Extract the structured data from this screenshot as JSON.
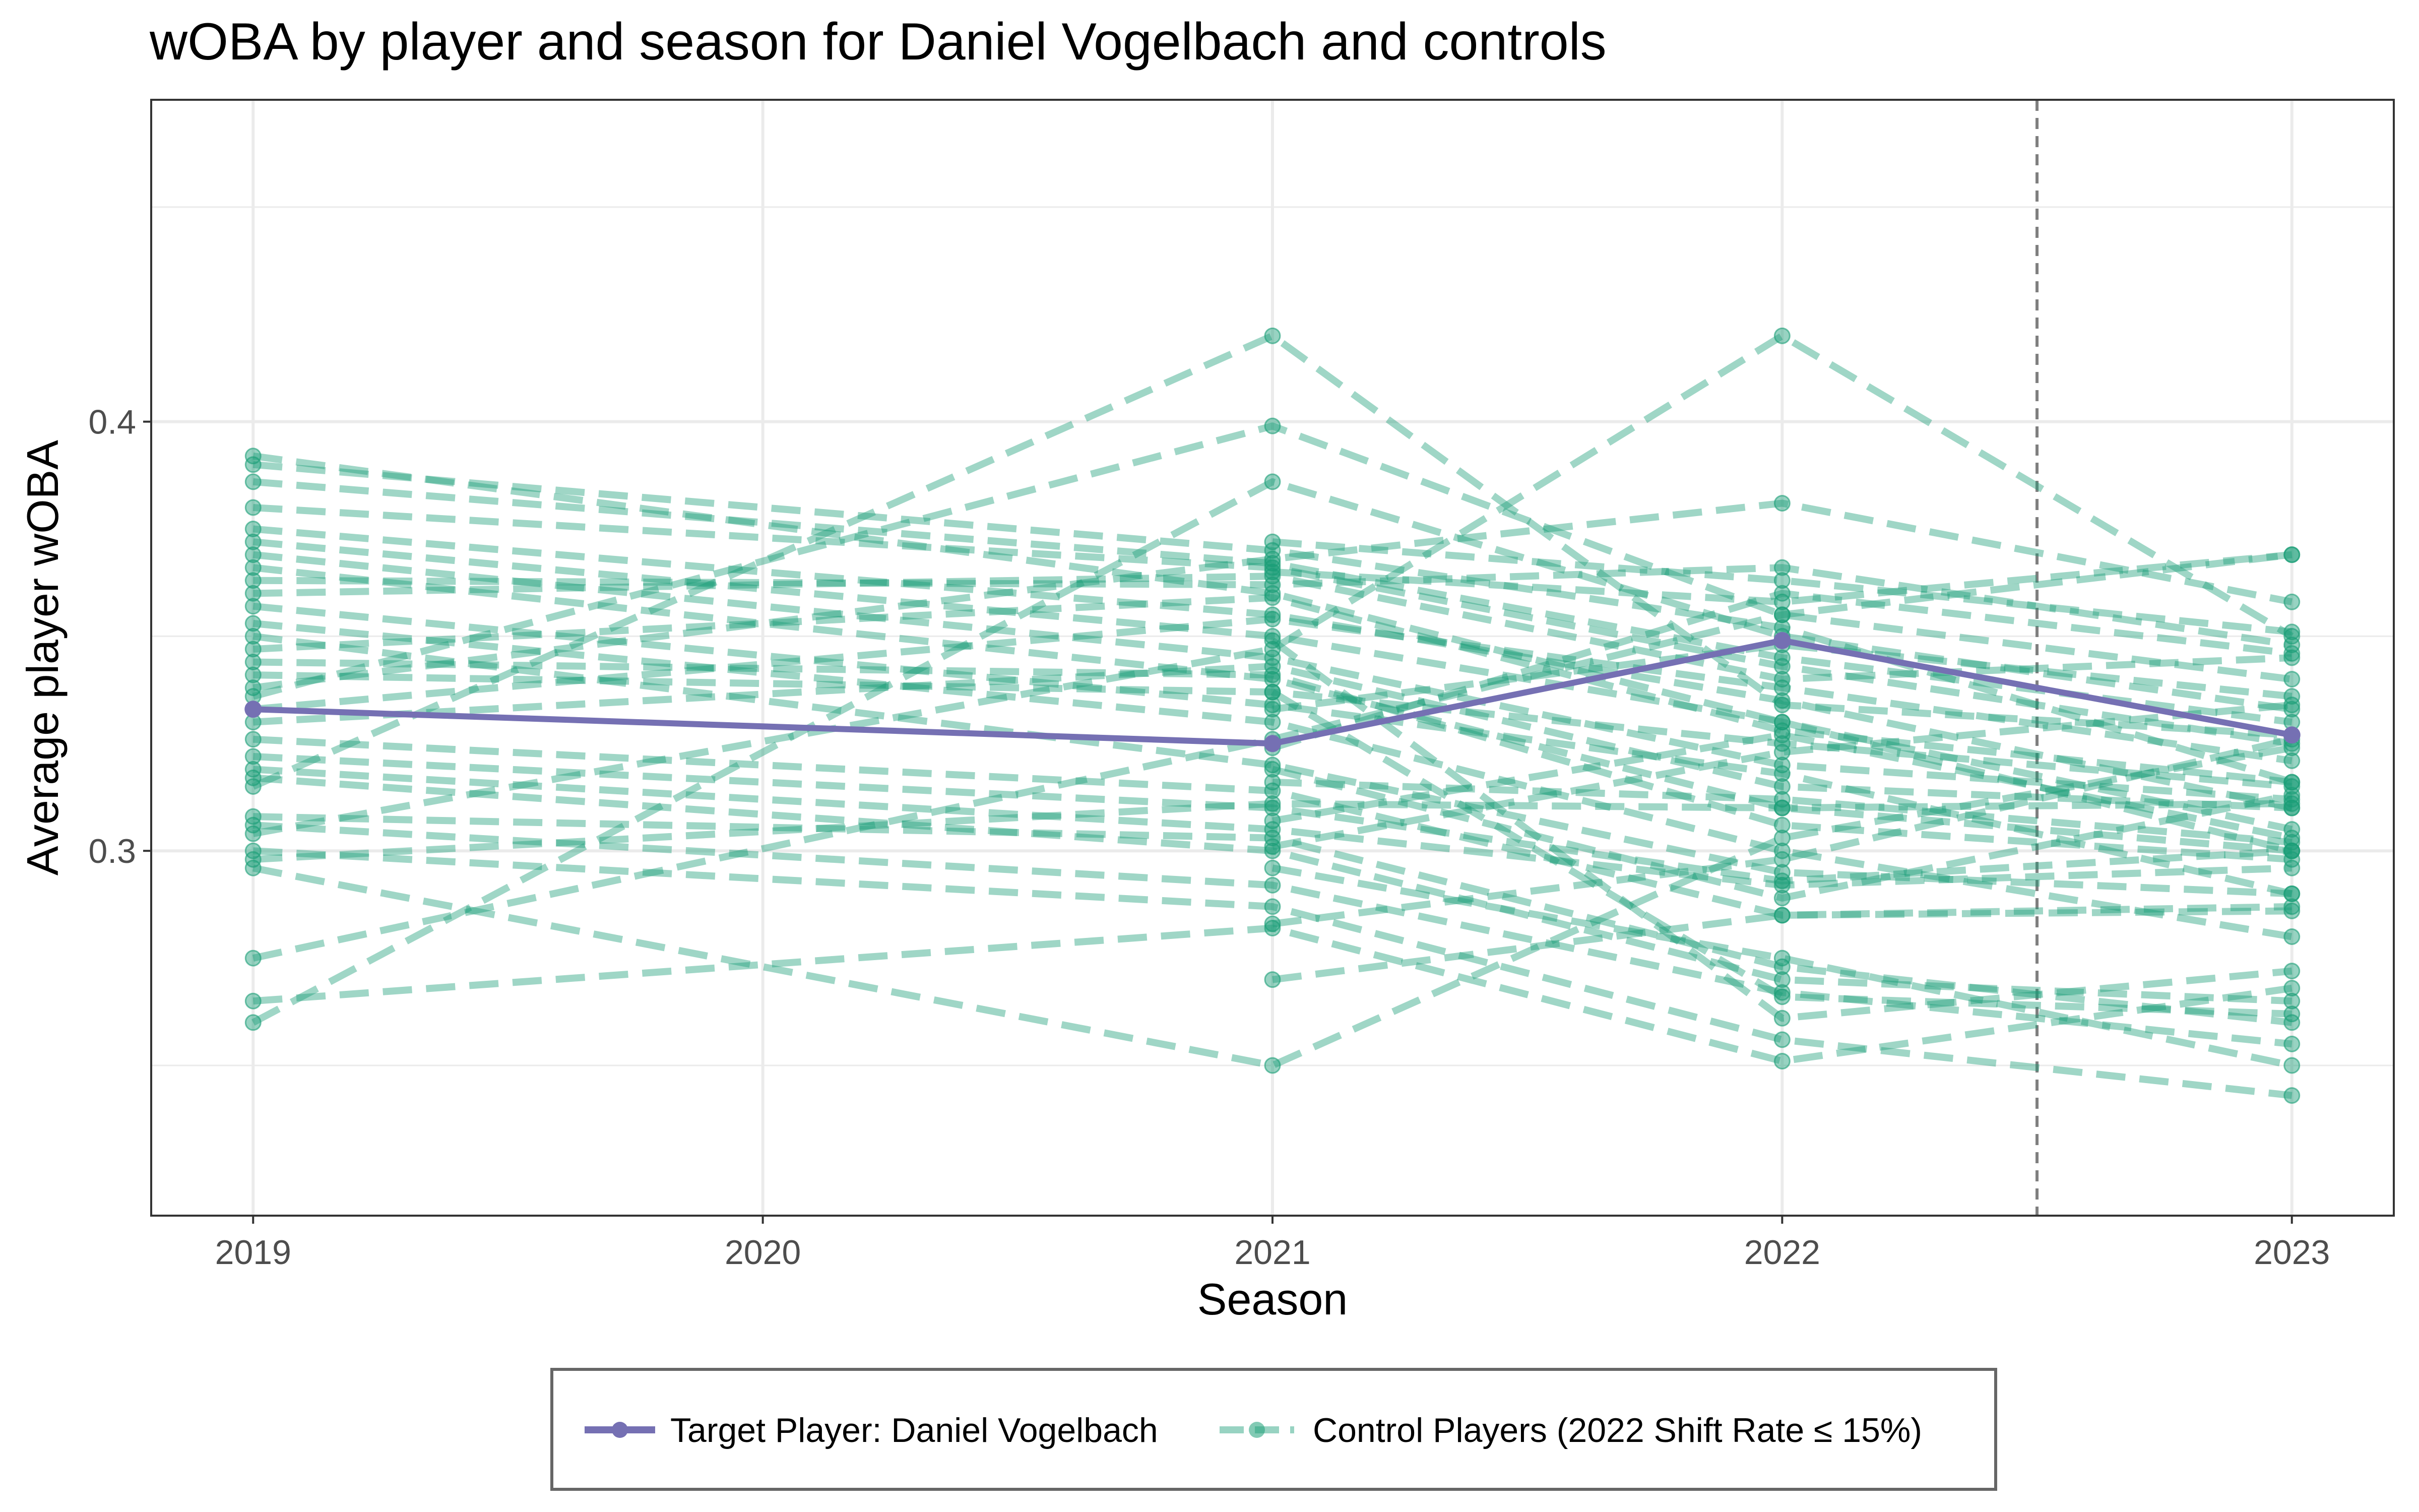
{
  "chart_data": {
    "type": "line",
    "title": "wOBA by player and season for Daniel Vogelbach and controls",
    "xlabel": "Season",
    "ylabel": "Average player wOBA",
    "x": [
      2019,
      2020,
      2021,
      2022,
      2023
    ],
    "x_tick_labels": [
      "2019",
      "2020",
      "2021",
      "2022",
      "2023"
    ],
    "y_ticks": [
      0.3,
      0.4
    ],
    "y_tick_labels": [
      "0.3",
      "0.4"
    ],
    "xlim": [
      2018.8,
      2023.2
    ],
    "ylim": [
      0.215,
      0.475
    ],
    "grid": true,
    "vertical_reference_line": {
      "x": 2022.5,
      "style": "dashed"
    },
    "legend_position": "bottom",
    "series": [
      {
        "name": "Target Player: Daniel Vogelbach",
        "role": "target",
        "color": "#7570B3",
        "style": "solid",
        "points": [
          [
            2019,
            0.333
          ],
          [
            2021,
            0.325
          ],
          [
            2022,
            0.349
          ],
          [
            2023,
            0.327
          ]
        ]
      },
      {
        "name": "Control Players (2022 Shift Rate ≤ 15%)",
        "role": "control",
        "color": "#1B9E77",
        "style": "dashed",
        "players": [
          [
            [
              2019,
              0.392
            ],
            [
              2021,
              0.36
            ],
            [
              2022,
              0.33
            ],
            [
              2023,
              0.3
            ]
          ],
          [
            [
              2019,
              0.39
            ],
            [
              2021,
              0.37
            ],
            [
              2022,
              0.352
            ],
            [
              2023,
              0.316
            ]
          ],
          [
            [
              2019,
              0.386
            ],
            [
              2021,
              0.367
            ],
            [
              2022,
              0.345
            ],
            [
              2023,
              0.33
            ]
          ],
          [
            [
              2019,
              0.38
            ],
            [
              2021,
              0.366
            ],
            [
              2022,
              0.343
            ],
            [
              2023,
              0.325
            ]
          ],
          [
            [
              2019,
              0.375
            ],
            [
              2021,
              0.355
            ],
            [
              2022,
              0.335
            ],
            [
              2023,
              0.31
            ]
          ],
          [
            [
              2019,
              0.372
            ],
            [
              2021,
              0.35
            ],
            [
              2022,
              0.33
            ],
            [
              2023,
              0.305
            ]
          ],
          [
            [
              2019,
              0.369
            ],
            [
              2021,
              0.345
            ],
            [
              2022,
              0.32
            ],
            [
              2023,
              0.312
            ]
          ],
          [
            [
              2019,
              0.366
            ],
            [
              2021,
              0.34
            ],
            [
              2022,
              0.31
            ],
            [
              2023,
              0.3
            ]
          ],
          [
            [
              2019,
              0.363
            ],
            [
              2021,
              0.362
            ],
            [
              2022,
              0.366
            ],
            [
              2023,
              0.348
            ]
          ],
          [
            [
              2019,
              0.36
            ],
            [
              2021,
              0.364
            ],
            [
              2022,
              0.34
            ],
            [
              2023,
              0.345
            ]
          ],
          [
            [
              2019,
              0.357
            ],
            [
              2021,
              0.334
            ],
            [
              2022,
              0.318
            ],
            [
              2023,
              0.29
            ]
          ],
          [
            [
              2019,
              0.353
            ],
            [
              2021,
              0.33
            ],
            [
              2022,
              0.3
            ],
            [
              2023,
              0.28
            ]
          ],
          [
            [
              2019,
              0.35
            ],
            [
              2021,
              0.32
            ],
            [
              2022,
              0.295
            ],
            [
              2023,
              0.29
            ]
          ],
          [
            [
              2019,
              0.347
            ],
            [
              2021,
              0.359
            ],
            [
              2022,
              0.328
            ],
            [
              2023,
              0.316
            ]
          ],
          [
            [
              2019,
              0.344
            ],
            [
              2021,
              0.341
            ],
            [
              2022,
              0.306
            ],
            [
              2023,
              0.298
            ]
          ],
          [
            [
              2019,
              0.341
            ],
            [
              2021,
              0.337
            ],
            [
              2022,
              0.325
            ],
            [
              2023,
              0.315
            ]
          ],
          [
            [
              2019,
              0.338
            ],
            [
              2021,
              0.368
            ],
            [
              2022,
              0.381
            ],
            [
              2023,
              0.358
            ]
          ],
          [
            [
              2019,
              0.336
            ],
            [
              2021,
              0.399
            ],
            [
              2022,
              0.355
            ],
            [
              2023,
              0.34
            ]
          ],
          [
            [
              2019,
              0.333
            ],
            [
              2021,
              0.354
            ],
            [
              2022,
              0.338
            ],
            [
              2023,
              0.321
            ]
          ],
          [
            [
              2019,
              0.33
            ],
            [
              2021,
              0.343
            ],
            [
              2022,
              0.315
            ],
            [
              2023,
              0.31
            ]
          ],
          [
            [
              2019,
              0.326
            ],
            [
              2021,
              0.314
            ],
            [
              2022,
              0.285
            ],
            [
              2023,
              0.287
            ]
          ],
          [
            [
              2019,
              0.322
            ],
            [
              2021,
              0.31
            ],
            [
              2022,
              0.293
            ],
            [
              2023,
              0.3
            ]
          ],
          [
            [
              2019,
              0.319
            ],
            [
              2021,
              0.305
            ],
            [
              2022,
              0.292
            ],
            [
              2023,
              0.296
            ]
          ],
          [
            [
              2019,
              0.317
            ],
            [
              2021,
              0.3
            ],
            [
              2022,
              0.27
            ],
            [
              2023,
              0.265
            ]
          ],
          [
            [
              2019,
              0.315
            ],
            [
              2021,
              0.42
            ],
            [
              2022,
              0.334
            ],
            [
              2023,
              0.327
            ]
          ],
          [
            [
              2019,
              0.308
            ],
            [
              2021,
              0.303
            ],
            [
              2022,
              0.273
            ],
            [
              2023,
              0.26
            ]
          ],
          [
            [
              2019,
              0.306
            ],
            [
              2021,
              0.292
            ],
            [
              2022,
              0.267
            ],
            [
              2023,
              0.255
            ]
          ],
          [
            [
              2019,
              0.304
            ],
            [
              2021,
              0.347
            ],
            [
              2022,
              0.42
            ],
            [
              2023,
              0.35
            ]
          ],
          [
            [
              2019,
              0.3
            ],
            [
              2021,
              0.287
            ],
            [
              2022,
              0.256
            ],
            [
              2023,
              0.243
            ]
          ],
          [
            [
              2019,
              0.298
            ],
            [
              2021,
              0.311
            ],
            [
              2022,
              0.31
            ],
            [
              2023,
              0.311
            ]
          ],
          [
            [
              2019,
              0.296
            ],
            [
              2021,
              0.25
            ],
            [
              2022,
              0.303
            ],
            [
              2023,
              0.324
            ]
          ],
          [
            [
              2019,
              0.275
            ],
            [
              2021,
              0.326
            ],
            [
              2022,
              0.355
            ],
            [
              2023,
              0.369
            ]
          ],
          [
            [
              2019,
              0.265
            ],
            [
              2021,
              0.282
            ],
            [
              2022,
              0.251
            ],
            [
              2023,
              0.268
            ]
          ],
          [
            [
              2019,
              0.26
            ],
            [
              2021,
              0.386
            ],
            [
              2022,
              0.35
            ],
            [
              2023,
              0.333
            ]
          ],
          [
            [
              2021,
              0.27
            ],
            [
              2022,
              0.285
            ],
            [
              2023,
              0.286
            ]
          ],
          [
            [
              2021,
              0.301
            ],
            [
              2022,
              0.323
            ],
            [
              2023,
              0.334
            ]
          ],
          [
            [
              2021,
              0.316
            ],
            [
              2022,
              0.312
            ],
            [
              2023,
              0.302
            ]
          ],
          [
            [
              2021,
              0.324
            ],
            [
              2022,
              0.36
            ],
            [
              2023,
              0.346
            ]
          ],
          [
            [
              2021,
              0.296
            ],
            [
              2022,
              0.275
            ],
            [
              2023,
              0.25
            ]
          ],
          [
            [
              2021,
              0.365
            ],
            [
              2022,
              0.358
            ],
            [
              2023,
              0.369
            ]
          ],
          [
            [
              2021,
              0.372
            ],
            [
              2022,
              0.363
            ],
            [
              2023,
              0.351
            ]
          ],
          [
            [
              2021,
              0.333
            ],
            [
              2022,
              0.348
            ],
            [
              2023,
              0.336
            ]
          ],
          [
            [
              2021,
              0.283
            ],
            [
              2022,
              0.298
            ],
            [
              2023,
              0.326
            ]
          ],
          [
            [
              2021,
              0.307
            ],
            [
              2022,
              0.327
            ],
            [
              2023,
              0.303
            ]
          ],
          [
            [
              2021,
              0.349
            ],
            [
              2022,
              0.261
            ],
            [
              2023,
              0.272
            ]
          ],
          [
            [
              2021,
              0.319
            ],
            [
              2022,
              0.289
            ],
            [
              2023,
              0.313
            ]
          ],
          [
            [
              2021,
              0.337
            ],
            [
              2022,
              0.266
            ],
            [
              2023,
              0.262
            ]
          ]
        ]
      }
    ],
    "legend": {
      "entries": [
        {
          "label": "Target Player: Daniel Vogelbach",
          "color": "#7570B3",
          "style": "solid"
        },
        {
          "label": "Control Players (2022 Shift Rate ≤ 15%)",
          "color": "#1B9E77",
          "style": "dashed"
        }
      ]
    }
  }
}
